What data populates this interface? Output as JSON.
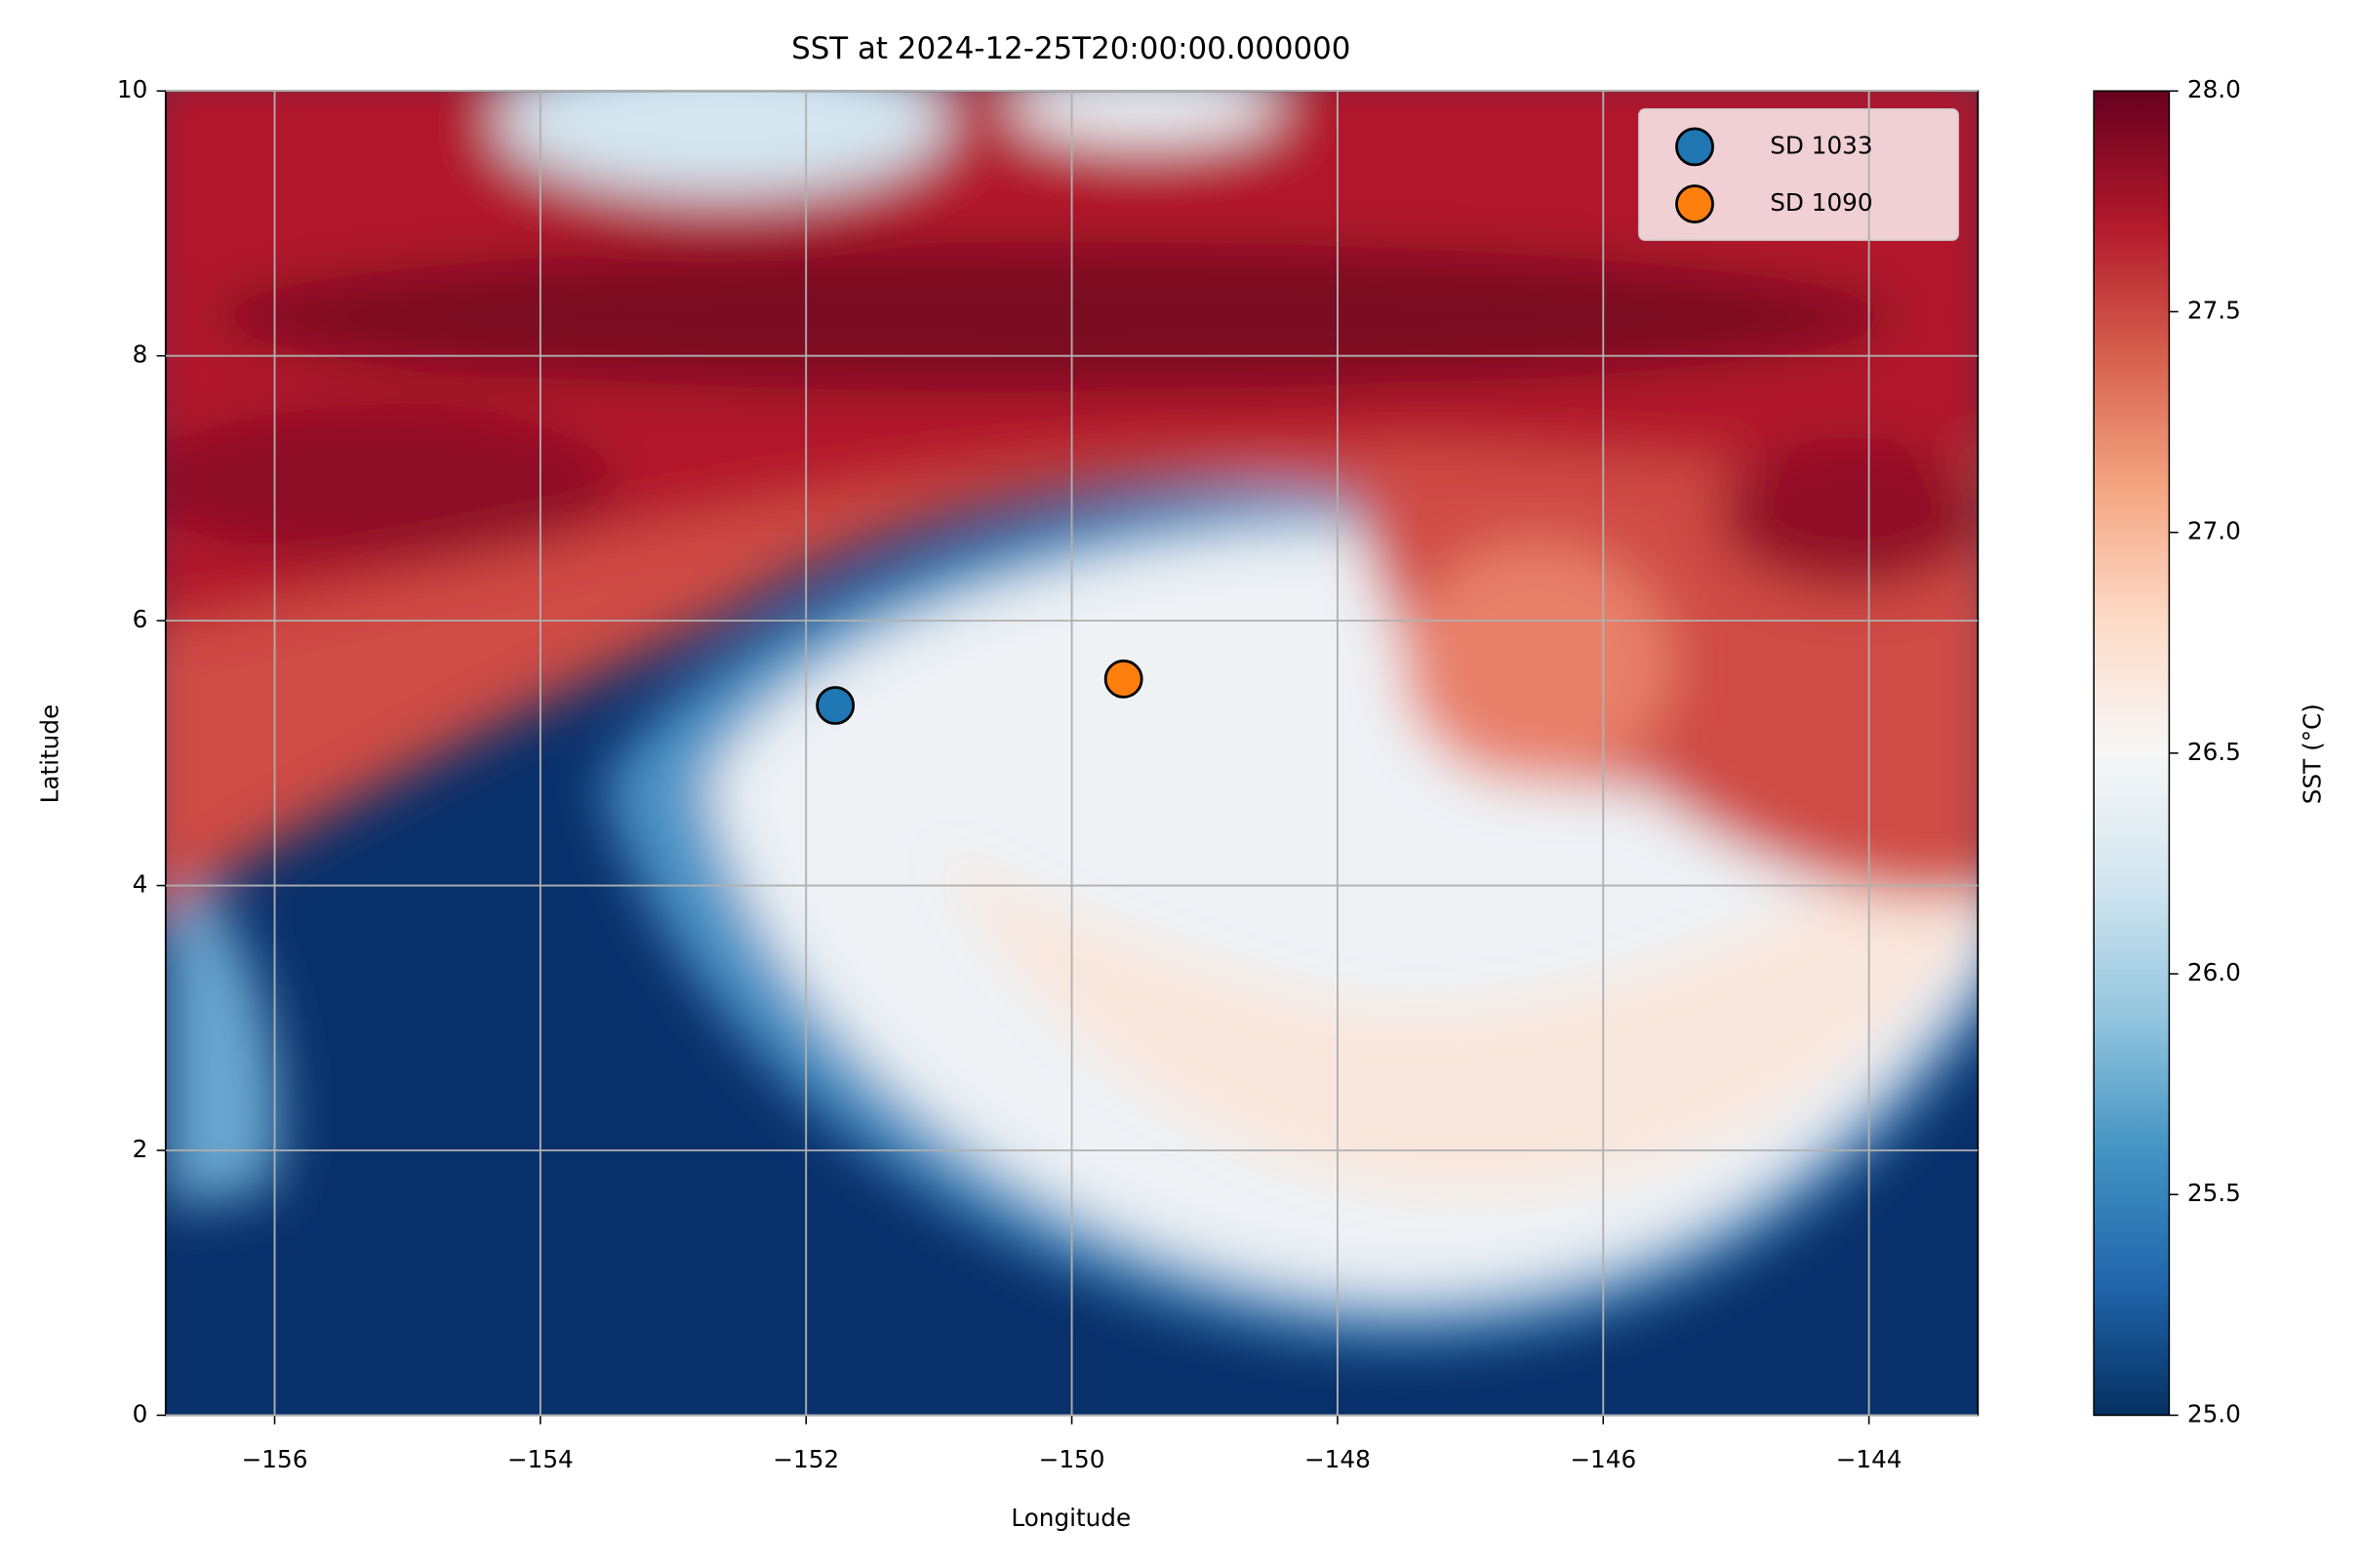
{
  "chart_data": {
    "type": "scatter",
    "title": "SST at 2024-12-25T20:00:00.000000",
    "xlabel": "Longitude",
    "ylabel": "Latitude",
    "xlim": [
      -156.82,
      -143.18
    ],
    "ylim": [
      0,
      10
    ],
    "xticks": [
      {
        "value": -156,
        "label": "−156"
      },
      {
        "value": -154,
        "label": "−154"
      },
      {
        "value": -152,
        "label": "−152"
      },
      {
        "value": -150,
        "label": "−150"
      },
      {
        "value": -148,
        "label": "−148"
      },
      {
        "value": -146,
        "label": "−146"
      },
      {
        "value": -144,
        "label": "−144"
      }
    ],
    "yticks": [
      0,
      2,
      4,
      6,
      8,
      10
    ],
    "grid": true,
    "legend": "upper right",
    "series": [
      {
        "name": "SD 1033",
        "color": "#1f77b4",
        "x": [
          -151.78
        ],
        "values": [
          5.36
        ]
      },
      {
        "name": "SD 1090",
        "color": "#ff7f0e",
        "x": [
          -149.61
        ],
        "values": [
          5.56
        ]
      }
    ],
    "colorbar": {
      "label": "SST (°C)",
      "lim": [
        25,
        28
      ],
      "ticks": [
        {
          "value": 25,
          "label": "25.0"
        },
        25.5,
        {
          "value": 26,
          "label": "26.0"
        },
        26.5,
        {
          "value": 27,
          "label": "27.0"
        },
        27.5,
        {
          "value": 28,
          "label": "28.0"
        }
      ]
    }
  }
}
